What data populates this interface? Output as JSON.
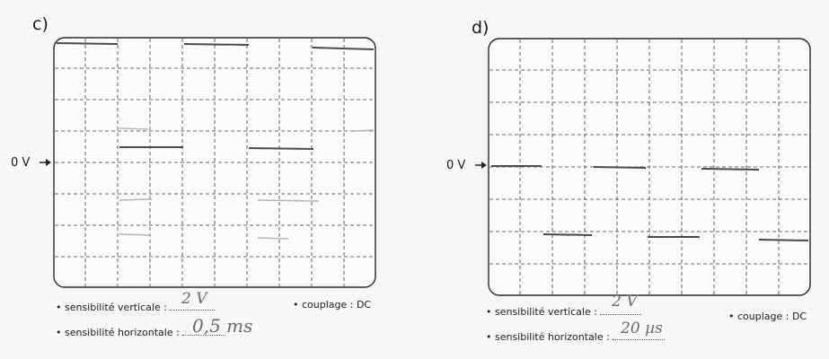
{
  "panels": [
    {
      "label": "c)",
      "zero_label": "0 V",
      "vertical_text": "• sensibilité verticale :",
      "vertical_value": "2 V",
      "horizontal_text": "• sensibilité horizontale :",
      "horizontal_value": "0,5 ms",
      "coupling_text": "• couplage : DC"
    },
    {
      "label": "d)",
      "zero_label": "0 V",
      "vertical_text": "• sensibilité verticale :",
      "vertical_value": "2 V",
      "horizontal_text": "• sensibilité horizontale :",
      "horizontal_value": "20 µs",
      "coupling_text": "• couplage : DC"
    }
  ],
  "colors": {
    "trace": "#4a4a4a",
    "faint_trace": "#b5b5b5",
    "grid": "#3a3a3a",
    "frame": "#2a2a2a"
  }
}
